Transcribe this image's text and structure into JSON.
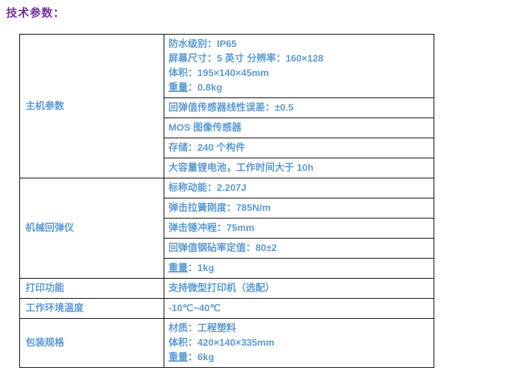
{
  "page_title": "技术参数：",
  "colors": {
    "title_text": "#7030A0",
    "body_text": "#5B9BD5",
    "table_border": "#000000",
    "background": "#ffffff"
  },
  "table": {
    "groups": [
      {
        "label": "主机参数",
        "cells": [
          {
            "lines": [
              {
                "text": "防水级别：IP65"
              },
              {
                "text": "屏幕尺寸：5 英寸 分辨率：160×128"
              },
              {
                "text": "体积：195×140×45mm"
              },
              {
                "underline": "重量",
                "text": "：0.8kg"
              }
            ]
          },
          {
            "lines": [
              {
                "text": "回弹值传感器线性误差：±0.5"
              }
            ]
          },
          {
            "lines": [
              {
                "text": "MOS 图像传感器"
              }
            ]
          },
          {
            "lines": [
              {
                "text": "存储：240 个构件"
              }
            ]
          },
          {
            "lines": [
              {
                "text": "大容量锂电池，工作时间大于 10h"
              }
            ]
          }
        ]
      },
      {
        "label": "机械回弹仪",
        "cells": [
          {
            "lines": [
              {
                "text": "标称动能：2.207J"
              }
            ]
          },
          {
            "lines": [
              {
                "text": "弹击拉簧刚度：785N/m"
              }
            ]
          },
          {
            "lines": [
              {
                "text": "弹击锤冲程：75mm"
              }
            ]
          },
          {
            "lines": [
              {
                "text": "回弹值钢砧率定值：80±2"
              }
            ]
          },
          {
            "lines": [
              {
                "underline": "重量",
                "text": "：1kg"
              }
            ]
          }
        ]
      },
      {
        "label": "打印功能",
        "cells": [
          {
            "lines": [
              {
                "text": "支持微型打印机（选配）"
              }
            ]
          }
        ]
      },
      {
        "label": "工作环境温度",
        "cells": [
          {
            "lines": [
              {
                "text": "-10℃~40℃"
              }
            ]
          }
        ]
      },
      {
        "label": "包装规格",
        "cells": [
          {
            "lines": [
              {
                "text": "材质：工程塑料"
              },
              {
                "text": "体积：420×140×335mm"
              },
              {
                "underline": "重量",
                "text": "：6kg"
              }
            ]
          }
        ]
      }
    ]
  }
}
